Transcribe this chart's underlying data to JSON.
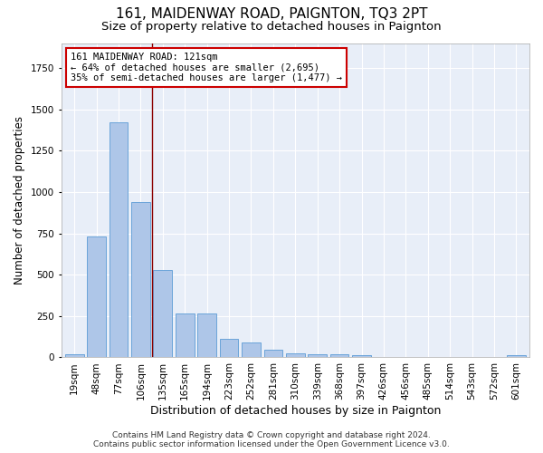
{
  "title1": "161, MAIDENWAY ROAD, PAIGNTON, TQ3 2PT",
  "title2": "Size of property relative to detached houses in Paignton",
  "xlabel": "Distribution of detached houses by size in Paignton",
  "ylabel": "Number of detached properties",
  "categories": [
    "19sqm",
    "48sqm",
    "77sqm",
    "106sqm",
    "135sqm",
    "165sqm",
    "194sqm",
    "223sqm",
    "252sqm",
    "281sqm",
    "310sqm",
    "339sqm",
    "368sqm",
    "397sqm",
    "426sqm",
    "456sqm",
    "485sqm",
    "514sqm",
    "543sqm",
    "572sqm",
    "601sqm"
  ],
  "values": [
    20,
    730,
    1420,
    940,
    530,
    265,
    265,
    110,
    90,
    45,
    25,
    20,
    20,
    13,
    0,
    0,
    0,
    0,
    0,
    0,
    15
  ],
  "bar_color": "#aec6e8",
  "bar_edge_color": "#5b9bd5",
  "background_color": "#e8eef8",
  "grid_color": "#ffffff",
  "vline_x": 3.5,
  "vline_color": "#8b0000",
  "annotation_text": "161 MAIDENWAY ROAD: 121sqm\n← 64% of detached houses are smaller (2,695)\n35% of semi-detached houses are larger (1,477) →",
  "annotation_box_color": "#ffffff",
  "annotation_box_edge": "#cc0000",
  "footer1": "Contains HM Land Registry data © Crown copyright and database right 2024.",
  "footer2": "Contains public sector information licensed under the Open Government Licence v3.0.",
  "ylim": [
    0,
    1900
  ],
  "title1_fontsize": 11,
  "title2_fontsize": 9.5,
  "xlabel_fontsize": 9,
  "ylabel_fontsize": 8.5,
  "tick_fontsize": 7.5,
  "footer_fontsize": 6.5
}
